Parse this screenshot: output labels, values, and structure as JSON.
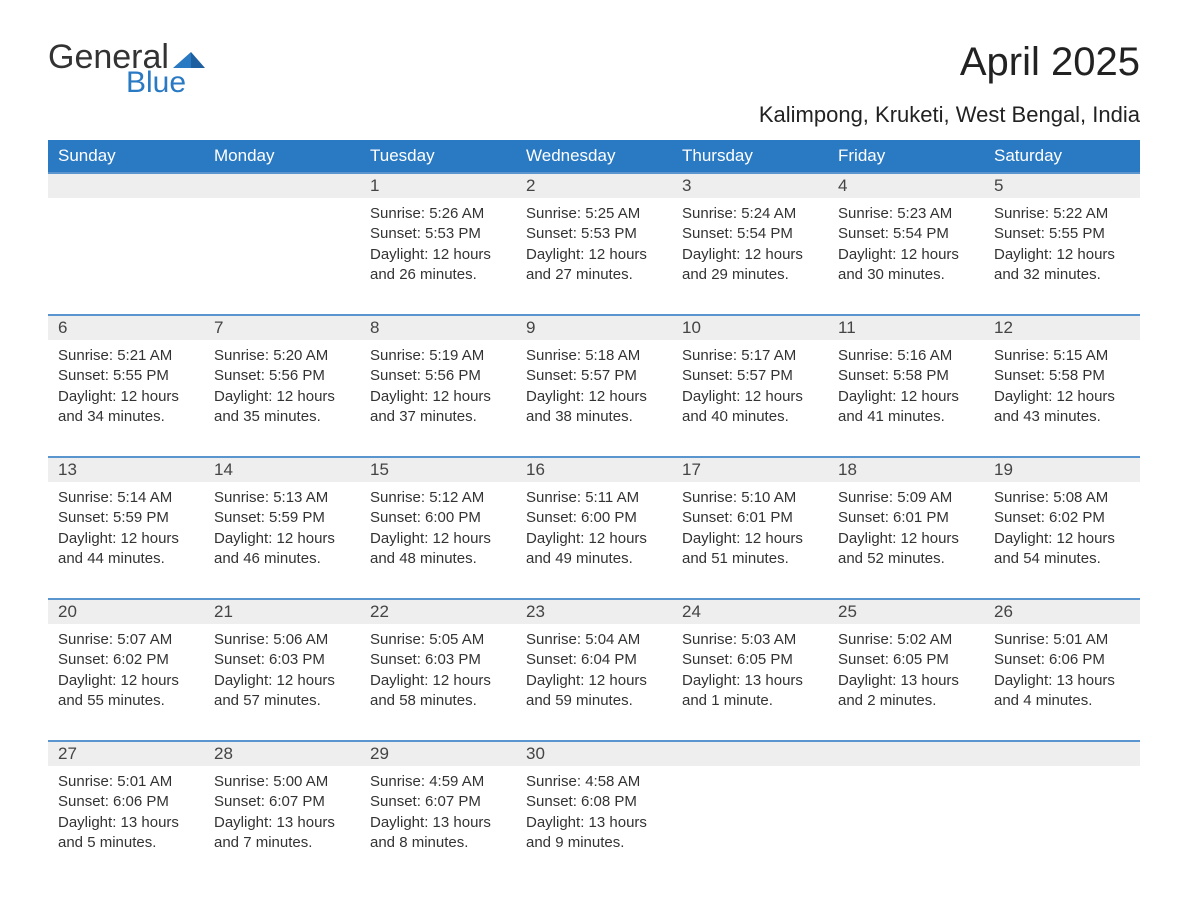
{
  "brand": {
    "line1": "General",
    "line2": "Blue",
    "brand_color": "#2979c3"
  },
  "title": "April 2025",
  "subtitle": "Kalimpong, Kruketi, West Bengal, India",
  "colors": {
    "header_bg": "#2979c3",
    "header_text": "#ffffff",
    "daynum_bg": "#eeeeee",
    "daynum_border": "#5a95d0",
    "body_text": "#333333",
    "page_bg": "#ffffff"
  },
  "typography": {
    "title_fontsize": 40,
    "subtitle_fontsize": 22,
    "header_fontsize": 17,
    "daynum_fontsize": 17,
    "detail_fontsize": 15,
    "font_family": "Segoe UI"
  },
  "layout": {
    "columns": 7,
    "rows": 5,
    "start_day_index": 2
  },
  "day_headers": [
    "Sunday",
    "Monday",
    "Tuesday",
    "Wednesday",
    "Thursday",
    "Friday",
    "Saturday"
  ],
  "weeks": [
    [
      null,
      null,
      {
        "n": "1",
        "sunrise": "5:26 AM",
        "sunset": "5:53 PM",
        "daylight": "12 hours and 26 minutes."
      },
      {
        "n": "2",
        "sunrise": "5:25 AM",
        "sunset": "5:53 PM",
        "daylight": "12 hours and 27 minutes."
      },
      {
        "n": "3",
        "sunrise": "5:24 AM",
        "sunset": "5:54 PM",
        "daylight": "12 hours and 29 minutes."
      },
      {
        "n": "4",
        "sunrise": "5:23 AM",
        "sunset": "5:54 PM",
        "daylight": "12 hours and 30 minutes."
      },
      {
        "n": "5",
        "sunrise": "5:22 AM",
        "sunset": "5:55 PM",
        "daylight": "12 hours and 32 minutes."
      }
    ],
    [
      {
        "n": "6",
        "sunrise": "5:21 AM",
        "sunset": "5:55 PM",
        "daylight": "12 hours and 34 minutes."
      },
      {
        "n": "7",
        "sunrise": "5:20 AM",
        "sunset": "5:56 PM",
        "daylight": "12 hours and 35 minutes."
      },
      {
        "n": "8",
        "sunrise": "5:19 AM",
        "sunset": "5:56 PM",
        "daylight": "12 hours and 37 minutes."
      },
      {
        "n": "9",
        "sunrise": "5:18 AM",
        "sunset": "5:57 PM",
        "daylight": "12 hours and 38 minutes."
      },
      {
        "n": "10",
        "sunrise": "5:17 AM",
        "sunset": "5:57 PM",
        "daylight": "12 hours and 40 minutes."
      },
      {
        "n": "11",
        "sunrise": "5:16 AM",
        "sunset": "5:58 PM",
        "daylight": "12 hours and 41 minutes."
      },
      {
        "n": "12",
        "sunrise": "5:15 AM",
        "sunset": "5:58 PM",
        "daylight": "12 hours and 43 minutes."
      }
    ],
    [
      {
        "n": "13",
        "sunrise": "5:14 AM",
        "sunset": "5:59 PM",
        "daylight": "12 hours and 44 minutes."
      },
      {
        "n": "14",
        "sunrise": "5:13 AM",
        "sunset": "5:59 PM",
        "daylight": "12 hours and 46 minutes."
      },
      {
        "n": "15",
        "sunrise": "5:12 AM",
        "sunset": "6:00 PM",
        "daylight": "12 hours and 48 minutes."
      },
      {
        "n": "16",
        "sunrise": "5:11 AM",
        "sunset": "6:00 PM",
        "daylight": "12 hours and 49 minutes."
      },
      {
        "n": "17",
        "sunrise": "5:10 AM",
        "sunset": "6:01 PM",
        "daylight": "12 hours and 51 minutes."
      },
      {
        "n": "18",
        "sunrise": "5:09 AM",
        "sunset": "6:01 PM",
        "daylight": "12 hours and 52 minutes."
      },
      {
        "n": "19",
        "sunrise": "5:08 AM",
        "sunset": "6:02 PM",
        "daylight": "12 hours and 54 minutes."
      }
    ],
    [
      {
        "n": "20",
        "sunrise": "5:07 AM",
        "sunset": "6:02 PM",
        "daylight": "12 hours and 55 minutes."
      },
      {
        "n": "21",
        "sunrise": "5:06 AM",
        "sunset": "6:03 PM",
        "daylight": "12 hours and 57 minutes."
      },
      {
        "n": "22",
        "sunrise": "5:05 AM",
        "sunset": "6:03 PM",
        "daylight": "12 hours and 58 minutes."
      },
      {
        "n": "23",
        "sunrise": "5:04 AM",
        "sunset": "6:04 PM",
        "daylight": "12 hours and 59 minutes."
      },
      {
        "n": "24",
        "sunrise": "5:03 AM",
        "sunset": "6:05 PM",
        "daylight": "13 hours and 1 minute."
      },
      {
        "n": "25",
        "sunrise": "5:02 AM",
        "sunset": "6:05 PM",
        "daylight": "13 hours and 2 minutes."
      },
      {
        "n": "26",
        "sunrise": "5:01 AM",
        "sunset": "6:06 PM",
        "daylight": "13 hours and 4 minutes."
      }
    ],
    [
      {
        "n": "27",
        "sunrise": "5:01 AM",
        "sunset": "6:06 PM",
        "daylight": "13 hours and 5 minutes."
      },
      {
        "n": "28",
        "sunrise": "5:00 AM",
        "sunset": "6:07 PM",
        "daylight": "13 hours and 7 minutes."
      },
      {
        "n": "29",
        "sunrise": "4:59 AM",
        "sunset": "6:07 PM",
        "daylight": "13 hours and 8 minutes."
      },
      {
        "n": "30",
        "sunrise": "4:58 AM",
        "sunset": "6:08 PM",
        "daylight": "13 hours and 9 minutes."
      },
      null,
      null,
      null
    ]
  ],
  "labels": {
    "sunrise": "Sunrise:",
    "sunset": "Sunset:",
    "daylight": "Daylight:"
  }
}
